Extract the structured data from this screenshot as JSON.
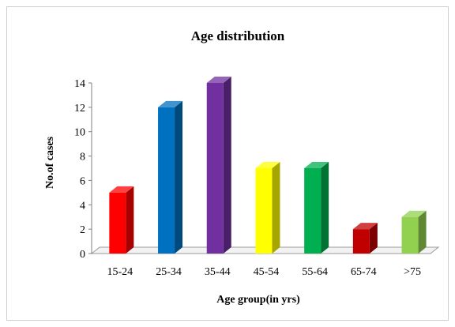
{
  "chart_data": {
    "type": "bar",
    "title": "Age distribution",
    "xlabel": "Age group(in yrs)",
    "ylabel": "No.of cases",
    "categories": [
      "15-24",
      "25-34",
      "35-44",
      "45-54",
      "55-64",
      "65-74",
      ">75"
    ],
    "values": [
      5,
      12,
      14,
      7,
      7,
      2,
      3
    ],
    "ylim": [
      0,
      14
    ],
    "yticks": [
      0,
      2,
      4,
      6,
      8,
      10,
      12,
      14
    ],
    "grid": false,
    "legend": "none",
    "style": "3d-column",
    "colors": [
      "#ff0000",
      "#0070c0",
      "#7030a0",
      "#ffff00",
      "#00b050",
      "#c00000",
      "#92d050"
    ]
  }
}
